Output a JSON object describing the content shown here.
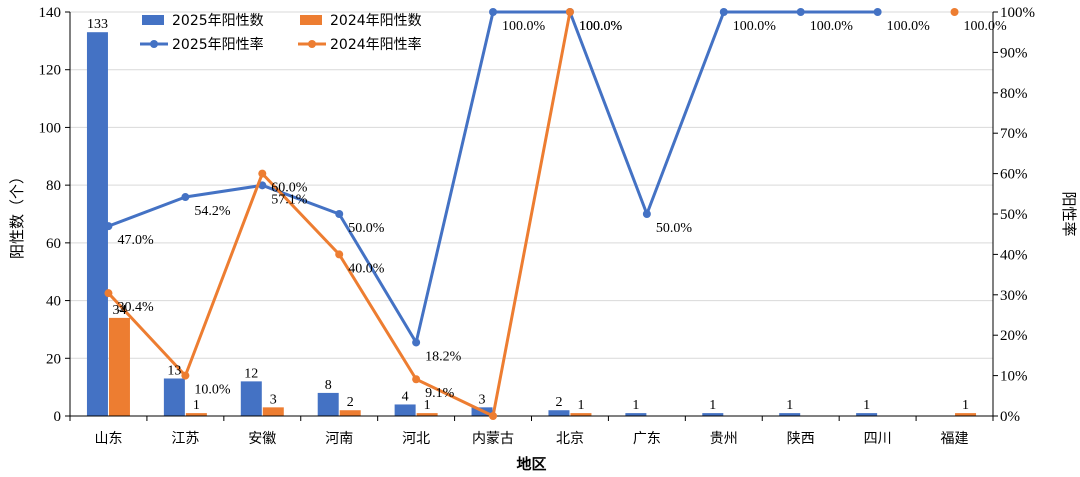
{
  "chart_data": {
    "type": "bar",
    "categories": [
      "山东",
      "江苏",
      "安徽",
      "河南",
      "河北",
      "内蒙古",
      "北京",
      "广东",
      "贵州",
      "陕西",
      "四川",
      "福建"
    ],
    "xlabel": "地区",
    "ylabel": "阳性数（个）",
    "y2label": "阳性率",
    "ylim": [
      0,
      140
    ],
    "yticks": [
      "0",
      "20",
      "40",
      "60",
      "80",
      "100",
      "120",
      "140"
    ],
    "y2lim": [
      0,
      100
    ],
    "y2ticks": [
      "0%",
      "10%",
      "20%",
      "30%",
      "40%",
      "50%",
      "60%",
      "70%",
      "80%",
      "90%",
      "100%"
    ],
    "grid": true,
    "legend_position": "top",
    "bar_series": [
      {
        "name": "2025年阳性数",
        "color": "#4472C4",
        "values": [
          133,
          13,
          12,
          8,
          4,
          3,
          2,
          1,
          1,
          1,
          1,
          null
        ]
      },
      {
        "name": "2024年阳性数",
        "color": "#ED7D31",
        "values": [
          34,
          1,
          3,
          2,
          1,
          null,
          1,
          null,
          null,
          null,
          null,
          1
        ]
      }
    ],
    "line_series": [
      {
        "name": "2025年阳性率",
        "color": "#4472C4",
        "values": [
          47.0,
          54.2,
          57.1,
          50.0,
          18.2,
          100.0,
          100.0,
          50.0,
          100.0,
          100.0,
          100.0,
          null
        ],
        "labels": [
          "47.0%",
          "54.2%",
          "57.1%",
          "50.0%",
          "18.2%",
          "100.0%",
          "100.0%",
          "50.0%",
          "100.0%",
          "100.0%",
          "100.0%",
          ""
        ]
      },
      {
        "name": "2024年阳性率",
        "color": "#ED7D31",
        "values": [
          30.4,
          10.0,
          60.0,
          40.0,
          9.1,
          0.0,
          100.0,
          null,
          null,
          null,
          null,
          100.0
        ],
        "labels": [
          "30.4%",
          "10.0%",
          "60.0%",
          "40.0%",
          "9.1%",
          "",
          "100.0%",
          "",
          "",
          "",
          "",
          "100.0%"
        ]
      }
    ]
  }
}
